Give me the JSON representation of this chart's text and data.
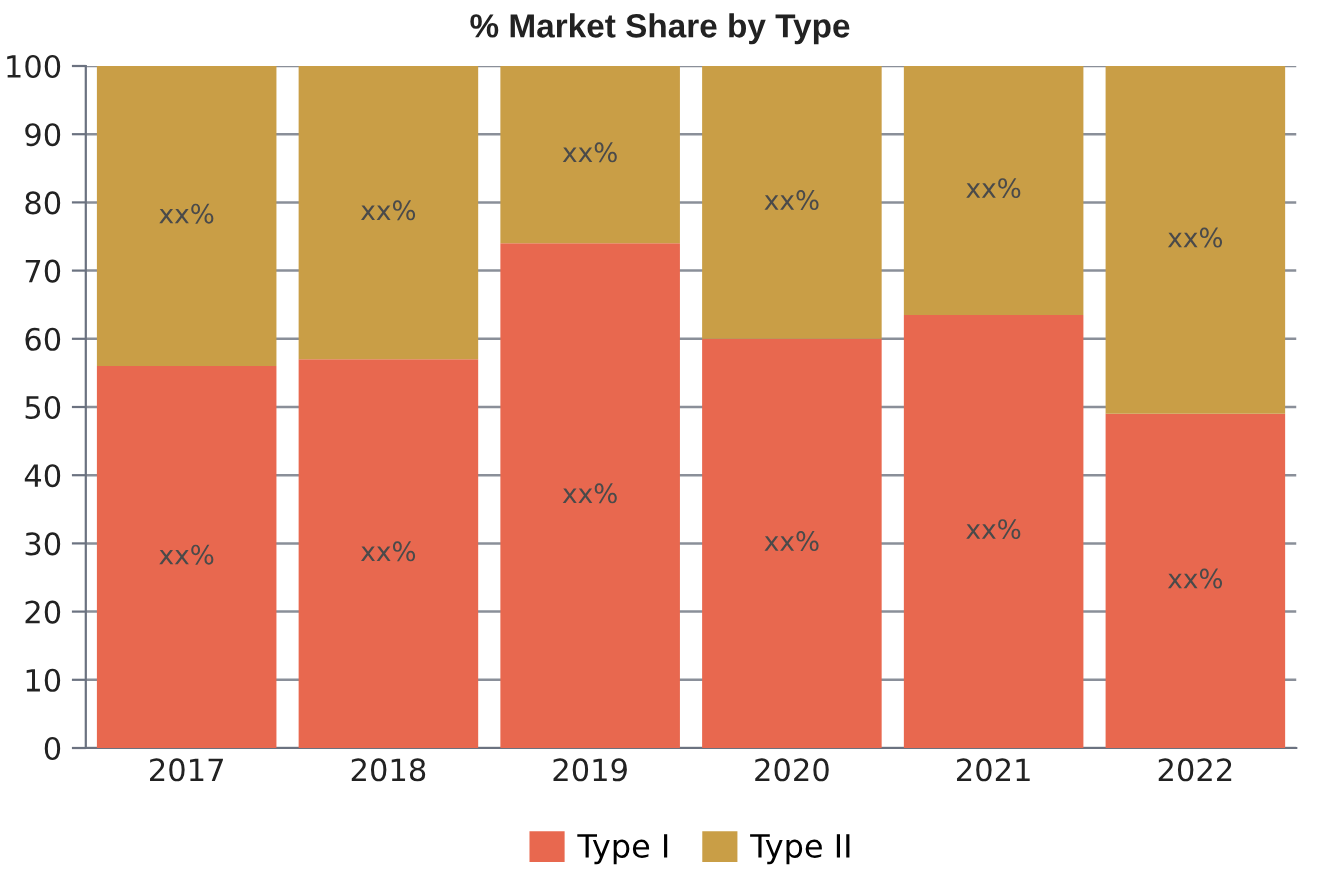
{
  "chart_data": {
    "type": "bar",
    "title": "% Market Share by Type",
    "categories": [
      "2017",
      "2018",
      "2019",
      "2020",
      "2021",
      "2022"
    ],
    "series": [
      {
        "name": "Type I",
        "color": "#e8684f",
        "values": [
          56,
          57,
          74,
          60,
          63.5,
          49
        ],
        "value_labels": [
          "xx%",
          "xx%",
          "xx%",
          "xx%",
          "xx%",
          "xx%"
        ]
      },
      {
        "name": "Type II",
        "color": "#c99e46",
        "values": [
          44,
          43,
          26,
          40,
          36.5,
          51
        ],
        "value_labels": [
          "xx%",
          "xx%",
          "xx%",
          "xx%",
          "xx%",
          "xx%"
        ]
      }
    ],
    "stacked": true,
    "ylim": [
      0,
      100
    ],
    "yticks": [
      0,
      10,
      20,
      30,
      40,
      50,
      60,
      70,
      80,
      90,
      100
    ],
    "grid": "y",
    "legend": "bottom"
  }
}
